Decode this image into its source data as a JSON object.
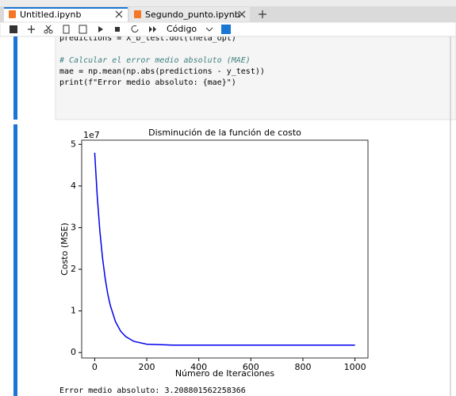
{
  "tabs": [
    "Untitled.ipynb",
    "Segundo_punto.ipynb"
  ],
  "toolbar": {
    "cell_type": "Código"
  },
  "code": {
    "lines": [
      "predictions = X_b_test.dot(theta_opt)",
      "",
      "# Calcular el error medio absoluto (MAE)",
      "mae = np.mean(np.abs(predictions - y_test))",
      "print(f\"Error medio absoluto: {mae}\")"
    ]
  },
  "output": "Error medio absoluto: 3.208801562258366",
  "chart_data": {
    "type": "line",
    "title": "Disminución de la función de costo",
    "xlabel": "Número de Iteraciones",
    "ylabel": "Costo (MSE)",
    "offset_label": "1e7",
    "x": [
      0,
      10,
      20,
      30,
      40,
      50,
      60,
      80,
      100,
      120,
      150,
      200,
      250,
      300,
      400,
      500,
      600,
      700,
      800,
      900,
      1000
    ],
    "series": [
      {
        "name": "Costo",
        "color": "#0000ee",
        "values": [
          4.8,
          3.73,
          2.91,
          2.28,
          1.79,
          1.41,
          1.13,
          0.74,
          0.51,
          0.38,
          0.27,
          0.2,
          0.19,
          0.18,
          0.18,
          0.18,
          0.18,
          0.18,
          0.18,
          0.18,
          0.18
        ]
      }
    ],
    "xlim": [
      -50,
      1050
    ],
    "ylim": [
      -0.13,
      5.1
    ],
    "xticks": [
      0,
      200,
      400,
      600,
      800,
      1000
    ],
    "yticks": [
      0,
      1,
      2,
      3,
      4,
      5
    ],
    "grid": false
  }
}
